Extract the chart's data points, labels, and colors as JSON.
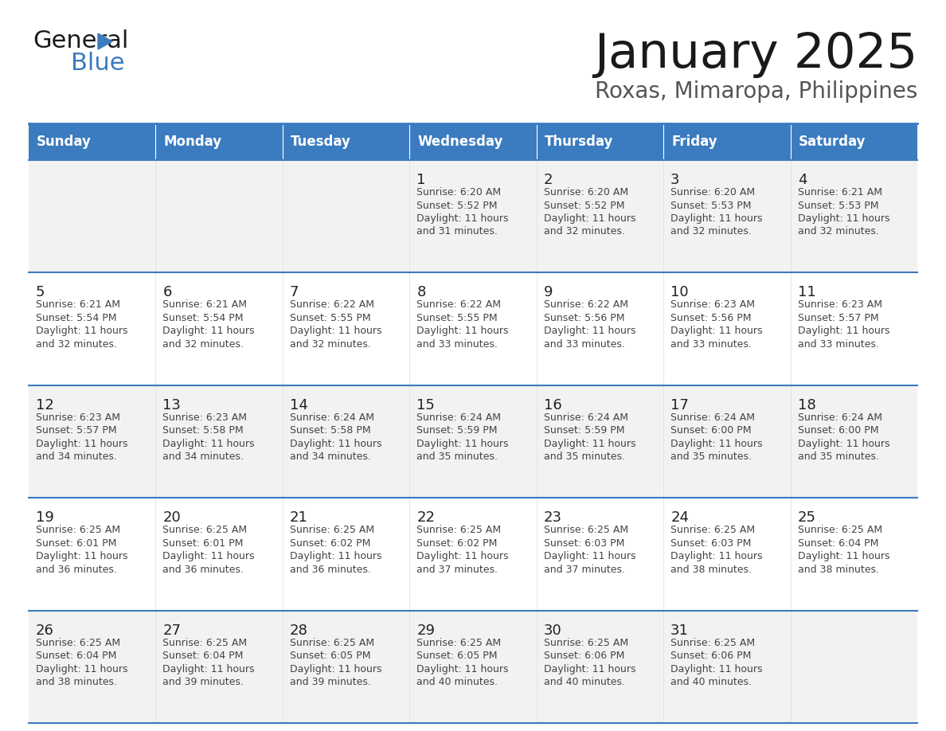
{
  "title": "January 2025",
  "subtitle": "Roxas, Mimaropa, Philippines",
  "header_bg": "#3b7bbf",
  "header_text_color": "#FFFFFF",
  "border_color": "#3b7bbf",
  "text_color": "#444444",
  "day_number_color": "#222222",
  "days_of_week": [
    "Sunday",
    "Monday",
    "Tuesday",
    "Wednesday",
    "Thursday",
    "Friday",
    "Saturday"
  ],
  "calendar": [
    [
      {
        "day": "",
        "lines": []
      },
      {
        "day": "",
        "lines": []
      },
      {
        "day": "",
        "lines": []
      },
      {
        "day": "1",
        "lines": [
          "Sunrise: 6:20 AM",
          "Sunset: 5:52 PM",
          "Daylight: 11 hours",
          "and 31 minutes."
        ]
      },
      {
        "day": "2",
        "lines": [
          "Sunrise: 6:20 AM",
          "Sunset: 5:52 PM",
          "Daylight: 11 hours",
          "and 32 minutes."
        ]
      },
      {
        "day": "3",
        "lines": [
          "Sunrise: 6:20 AM",
          "Sunset: 5:53 PM",
          "Daylight: 11 hours",
          "and 32 minutes."
        ]
      },
      {
        "day": "4",
        "lines": [
          "Sunrise: 6:21 AM",
          "Sunset: 5:53 PM",
          "Daylight: 11 hours",
          "and 32 minutes."
        ]
      }
    ],
    [
      {
        "day": "5",
        "lines": [
          "Sunrise: 6:21 AM",
          "Sunset: 5:54 PM",
          "Daylight: 11 hours",
          "and 32 minutes."
        ]
      },
      {
        "day": "6",
        "lines": [
          "Sunrise: 6:21 AM",
          "Sunset: 5:54 PM",
          "Daylight: 11 hours",
          "and 32 minutes."
        ]
      },
      {
        "day": "7",
        "lines": [
          "Sunrise: 6:22 AM",
          "Sunset: 5:55 PM",
          "Daylight: 11 hours",
          "and 32 minutes."
        ]
      },
      {
        "day": "8",
        "lines": [
          "Sunrise: 6:22 AM",
          "Sunset: 5:55 PM",
          "Daylight: 11 hours",
          "and 33 minutes."
        ]
      },
      {
        "day": "9",
        "lines": [
          "Sunrise: 6:22 AM",
          "Sunset: 5:56 PM",
          "Daylight: 11 hours",
          "and 33 minutes."
        ]
      },
      {
        "day": "10",
        "lines": [
          "Sunrise: 6:23 AM",
          "Sunset: 5:56 PM",
          "Daylight: 11 hours",
          "and 33 minutes."
        ]
      },
      {
        "day": "11",
        "lines": [
          "Sunrise: 6:23 AM",
          "Sunset: 5:57 PM",
          "Daylight: 11 hours",
          "and 33 minutes."
        ]
      }
    ],
    [
      {
        "day": "12",
        "lines": [
          "Sunrise: 6:23 AM",
          "Sunset: 5:57 PM",
          "Daylight: 11 hours",
          "and 34 minutes."
        ]
      },
      {
        "day": "13",
        "lines": [
          "Sunrise: 6:23 AM",
          "Sunset: 5:58 PM",
          "Daylight: 11 hours",
          "and 34 minutes."
        ]
      },
      {
        "day": "14",
        "lines": [
          "Sunrise: 6:24 AM",
          "Sunset: 5:58 PM",
          "Daylight: 11 hours",
          "and 34 minutes."
        ]
      },
      {
        "day": "15",
        "lines": [
          "Sunrise: 6:24 AM",
          "Sunset: 5:59 PM",
          "Daylight: 11 hours",
          "and 35 minutes."
        ]
      },
      {
        "day": "16",
        "lines": [
          "Sunrise: 6:24 AM",
          "Sunset: 5:59 PM",
          "Daylight: 11 hours",
          "and 35 minutes."
        ]
      },
      {
        "day": "17",
        "lines": [
          "Sunrise: 6:24 AM",
          "Sunset: 6:00 PM",
          "Daylight: 11 hours",
          "and 35 minutes."
        ]
      },
      {
        "day": "18",
        "lines": [
          "Sunrise: 6:24 AM",
          "Sunset: 6:00 PM",
          "Daylight: 11 hours",
          "and 35 minutes."
        ]
      }
    ],
    [
      {
        "day": "19",
        "lines": [
          "Sunrise: 6:25 AM",
          "Sunset: 6:01 PM",
          "Daylight: 11 hours",
          "and 36 minutes."
        ]
      },
      {
        "day": "20",
        "lines": [
          "Sunrise: 6:25 AM",
          "Sunset: 6:01 PM",
          "Daylight: 11 hours",
          "and 36 minutes."
        ]
      },
      {
        "day": "21",
        "lines": [
          "Sunrise: 6:25 AM",
          "Sunset: 6:02 PM",
          "Daylight: 11 hours",
          "and 36 minutes."
        ]
      },
      {
        "day": "22",
        "lines": [
          "Sunrise: 6:25 AM",
          "Sunset: 6:02 PM",
          "Daylight: 11 hours",
          "and 37 minutes."
        ]
      },
      {
        "day": "23",
        "lines": [
          "Sunrise: 6:25 AM",
          "Sunset: 6:03 PM",
          "Daylight: 11 hours",
          "and 37 minutes."
        ]
      },
      {
        "day": "24",
        "lines": [
          "Sunrise: 6:25 AM",
          "Sunset: 6:03 PM",
          "Daylight: 11 hours",
          "and 38 minutes."
        ]
      },
      {
        "day": "25",
        "lines": [
          "Sunrise: 6:25 AM",
          "Sunset: 6:04 PM",
          "Daylight: 11 hours",
          "and 38 minutes."
        ]
      }
    ],
    [
      {
        "day": "26",
        "lines": [
          "Sunrise: 6:25 AM",
          "Sunset: 6:04 PM",
          "Daylight: 11 hours",
          "and 38 minutes."
        ]
      },
      {
        "day": "27",
        "lines": [
          "Sunrise: 6:25 AM",
          "Sunset: 6:04 PM",
          "Daylight: 11 hours",
          "and 39 minutes."
        ]
      },
      {
        "day": "28",
        "lines": [
          "Sunrise: 6:25 AM",
          "Sunset: 6:05 PM",
          "Daylight: 11 hours",
          "and 39 minutes."
        ]
      },
      {
        "day": "29",
        "lines": [
          "Sunrise: 6:25 AM",
          "Sunset: 6:05 PM",
          "Daylight: 11 hours",
          "and 40 minutes."
        ]
      },
      {
        "day": "30",
        "lines": [
          "Sunrise: 6:25 AM",
          "Sunset: 6:06 PM",
          "Daylight: 11 hours",
          "and 40 minutes."
        ]
      },
      {
        "day": "31",
        "lines": [
          "Sunrise: 6:25 AM",
          "Sunset: 6:06 PM",
          "Daylight: 11 hours",
          "and 40 minutes."
        ]
      },
      {
        "day": "",
        "lines": []
      }
    ]
  ]
}
